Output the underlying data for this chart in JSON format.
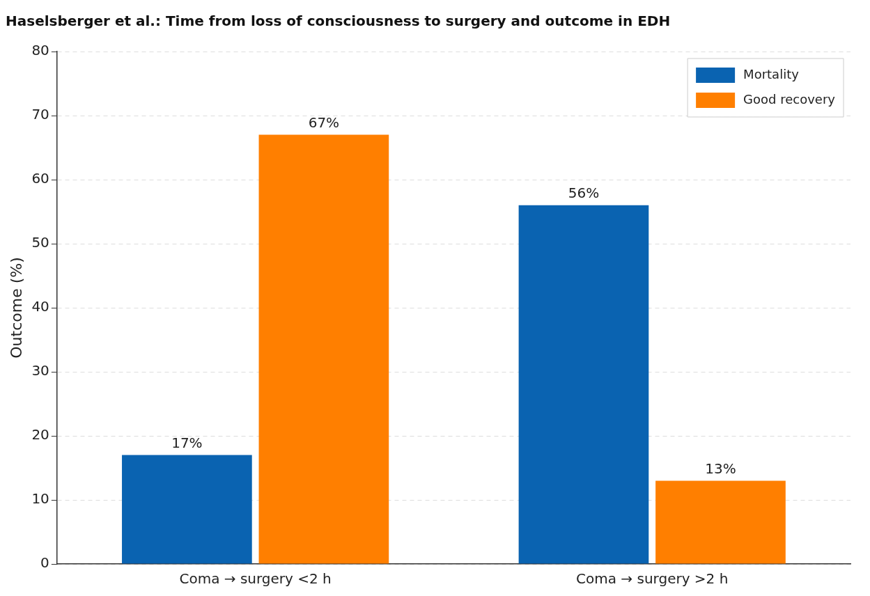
{
  "chart_data": {
    "type": "bar",
    "title": "Haselsberger et al.: Time from loss of consciousness to surgery and outcome in EDH",
    "ylabel": "Outcome (%)",
    "categories": [
      "Coma → surgery <2 h",
      "Coma → surgery >2 h"
    ],
    "series": [
      {
        "name": "Mortality",
        "color": "#0a63b1",
        "values": [
          17,
          56
        ],
        "value_labels": [
          "17%",
          "56%"
        ]
      },
      {
        "name": "Good recovery",
        "color": "#ff7f00",
        "values": [
          67,
          13
        ],
        "value_labels": [
          "67%",
          "13%"
        ]
      }
    ],
    "ylim": [
      0,
      80
    ],
    "yticks": [
      0,
      10,
      20,
      30,
      40,
      50,
      60,
      70,
      80
    ],
    "grid": "y",
    "legend": "top right"
  }
}
